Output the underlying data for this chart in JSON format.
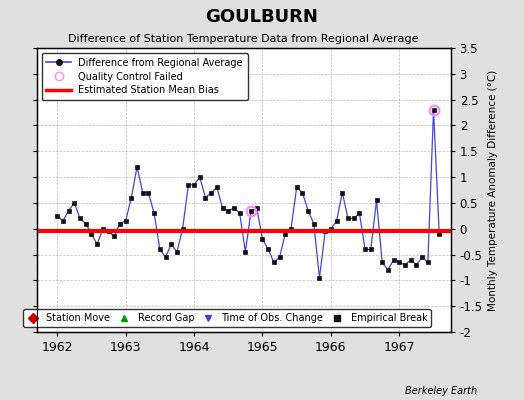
{
  "title": "GOULBURN",
  "subtitle": "Difference of Station Temperature Data from Regional Average",
  "ylabel_right": "Monthly Temperature Anomaly Difference (°C)",
  "ylim": [
    -2.0,
    3.5
  ],
  "yticks_right": [
    -2.0,
    -1.5,
    -1.0,
    -0.5,
    0.0,
    0.5,
    1.0,
    1.5,
    2.0,
    2.5,
    3.0,
    3.5
  ],
  "ytick_labels_right": [
    "-2",
    "-1.5",
    "-1",
    "-0.5",
    "0",
    "0.5",
    "1",
    "1.5",
    "2",
    "2.5",
    "3",
    "3.5"
  ],
  "bias_value": -0.05,
  "background_color": "#e0e0e0",
  "plot_bg_color": "#ffffff",
  "credit": "Berkeley Earth",
  "line_color": "#4444dd",
  "marker_color": "#111111",
  "bias_color": "#ff0000",
  "qc_fail_color": "#ff88ff",
  "data_x": [
    1962.0,
    1962.083,
    1962.167,
    1962.25,
    1962.333,
    1962.417,
    1962.5,
    1962.583,
    1962.667,
    1962.75,
    1962.833,
    1962.917,
    1963.0,
    1963.083,
    1963.167,
    1963.25,
    1963.333,
    1963.417,
    1963.5,
    1963.583,
    1963.667,
    1963.75,
    1963.833,
    1963.917,
    1964.0,
    1964.083,
    1964.167,
    1964.25,
    1964.333,
    1964.417,
    1964.5,
    1964.583,
    1964.667,
    1964.75,
    1964.833,
    1964.917,
    1965.0,
    1965.083,
    1965.167,
    1965.25,
    1965.333,
    1965.417,
    1965.5,
    1965.583,
    1965.667,
    1965.75,
    1965.833,
    1965.917,
    1966.0,
    1966.083,
    1966.167,
    1966.25,
    1966.333,
    1966.417,
    1966.5,
    1966.583,
    1966.667,
    1966.75,
    1966.833,
    1966.917,
    1967.0,
    1967.083,
    1967.167,
    1967.25,
    1967.333,
    1967.417,
    1967.5,
    1967.583
  ],
  "data_y": [
    0.25,
    0.15,
    0.35,
    0.5,
    0.2,
    0.1,
    -0.1,
    -0.3,
    0.0,
    -0.05,
    -0.15,
    0.1,
    0.15,
    0.6,
    1.2,
    0.7,
    0.7,
    0.3,
    -0.4,
    -0.55,
    -0.3,
    -0.45,
    0.0,
    0.85,
    0.85,
    1.0,
    0.6,
    0.7,
    0.8,
    0.4,
    0.35,
    0.4,
    0.3,
    -0.45,
    0.35,
    0.4,
    -0.2,
    -0.4,
    -0.65,
    -0.55,
    -0.1,
    0.0,
    0.8,
    0.7,
    0.35,
    0.1,
    -0.95,
    -0.05,
    0.0,
    0.15,
    0.7,
    0.2,
    0.2,
    0.3,
    -0.4,
    -0.4,
    0.55,
    -0.65,
    -0.8,
    -0.6,
    -0.65,
    -0.7,
    -0.6,
    -0.7,
    -0.55,
    -0.65,
    2.3,
    -0.1
  ],
  "qc_fail_indices": [
    34,
    66
  ],
  "xticks": [
    1962,
    1963,
    1964,
    1965,
    1966,
    1967
  ],
  "xlim": [
    1961.7,
    1967.75
  ]
}
